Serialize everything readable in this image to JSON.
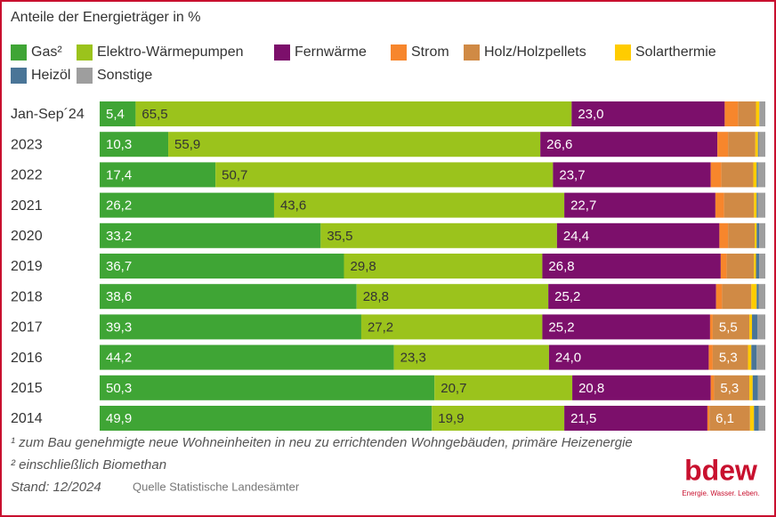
{
  "chart_data": {
    "type": "stacked-bar-horizontal",
    "title": "Anteile der Energieträger in %",
    "categories": [
      "Jan-Sep´24",
      "2023",
      "2022",
      "2021",
      "2020",
      "2019",
      "2018",
      "2017",
      "2016",
      "2015",
      "2014"
    ],
    "series": [
      {
        "name": "Gas²",
        "color": "#3fa535",
        "label_color": "#ffffff",
        "values": [
          5.4,
          10.3,
          17.4,
          26.2,
          33.2,
          36.7,
          38.6,
          39.3,
          44.2,
          50.3,
          49.9
        ],
        "value_labels": [
          "5,4",
          "10,3",
          "17,4",
          "26,2",
          "33,2",
          "36,7",
          "38,6",
          "39,3",
          "44,2",
          "50,3",
          "49,9"
        ]
      },
      {
        "name": "Elektro-Wärmepumpen",
        "color": "#9bc31c",
        "label_color": "#333333",
        "values": [
          65.5,
          55.9,
          50.7,
          43.6,
          35.5,
          29.8,
          28.8,
          27.2,
          23.3,
          20.7,
          19.9
        ],
        "value_labels": [
          "65,5",
          "55,9",
          "50,7",
          "43,6",
          "35,5",
          "29,8",
          "28,8",
          "27,2",
          "23,3",
          "20,7",
          "19,9"
        ]
      },
      {
        "name": "Fernwärme",
        "color": "#7c0f6b",
        "label_color": "#ffffff",
        "values": [
          23.0,
          26.6,
          23.7,
          22.7,
          24.4,
          26.8,
          25.2,
          25.2,
          24.0,
          20.8,
          21.5
        ],
        "value_labels": [
          "23,0",
          "26,6",
          "23,7",
          "22,7",
          "24,4",
          "26,8",
          "25,2",
          "25,2",
          "24,0",
          "20,8",
          "21,5"
        ]
      },
      {
        "name": "Strom",
        "color": "#f7862c",
        "values": [
          2.0,
          1.6,
          1.6,
          1.3,
          1.3,
          0.9,
          0.9,
          0.4,
          0.6,
          0.5,
          0.3
        ]
      },
      {
        "name": "Holz/Holzpellets",
        "color": "#d08a45",
        "label_color": "#ffffff",
        "values": [
          2.7,
          4.1,
          4.8,
          4.5,
          4.0,
          4.1,
          4.4,
          5.5,
          5.3,
          5.3,
          6.1
        ],
        "value_labels": [
          null,
          null,
          null,
          null,
          null,
          null,
          null,
          "5,5",
          "5,3",
          "5,3",
          "6,1"
        ]
      },
      {
        "name": "Solarthermie",
        "color": "#ffcc00",
        "values": [
          0.5,
          0.4,
          0.5,
          0.4,
          0.3,
          0.3,
          0.8,
          0.4,
          0.5,
          0.5,
          0.6
        ]
      },
      {
        "name": "Heizöl",
        "color": "#4a7597",
        "values": [
          0.0,
          0.1,
          0.2,
          0.2,
          0.4,
          0.5,
          0.3,
          0.8,
          0.8,
          0.8,
          0.7
        ]
      },
      {
        "name": "Sonstige",
        "color": "#9e9e9e",
        "values": [
          0.9,
          1.0,
          1.1,
          1.1,
          0.9,
          0.9,
          1.0,
          1.2,
          1.3,
          1.1,
          1.0
        ]
      }
    ],
    "footnotes": [
      "¹ zum Bau genehmigte neue Wohneinheiten in neu zu errichtenden Wohngebäuden, primäre Heizenergie",
      "² einschließlich Biomethan"
    ],
    "stand": "Stand: 12/2024",
    "source": "Quelle Statistische Landesämter",
    "logo": {
      "name": "bdew",
      "tagline": "Energie. Wasser. Leben."
    }
  }
}
